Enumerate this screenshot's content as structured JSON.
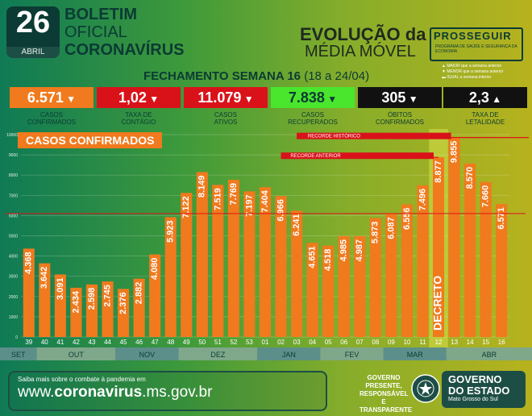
{
  "header": {
    "day": "26",
    "month": "ABRIL",
    "title_line1": "BOLETIM",
    "title_line2": "OFICIAL",
    "title_line3": "CORONAVÍRUS",
    "evo_line1": "EVOLUÇÃO da",
    "evo_line2": "MÉDIA MÓVEL",
    "prosseguir": "PROSSEGUIR",
    "prosseguir_sub": "PROGRAMA DE SAÚDE E SEGURANÇA DA ECONOMIA",
    "legend": [
      "MAIOR que a semana anterior",
      "MENOR que a semana anterior",
      "IGUAL a semana interior"
    ],
    "week_title": "FECHAMENTO SEMANA 16",
    "week_range": "(18 a 24/04)"
  },
  "indicators": [
    {
      "value": "6.571",
      "arrow": "▼",
      "label1": "CASOS",
      "label2": "CONFIRMADOS",
      "color": "#f07a1d",
      "text": "#ffffff"
    },
    {
      "value": "1,02",
      "arrow": "▼",
      "label1": "TAXA DE",
      "label2": "CONTÁGIO",
      "color": "#d9121a",
      "text": "#ffffff"
    },
    {
      "value": "11.079",
      "arrow": "▼",
      "label1": "CASOS",
      "label2": "ATIVOS",
      "color": "#d9121a",
      "text": "#ffffff"
    },
    {
      "value": "7.838",
      "arrow": "▼",
      "label1": "CASOS",
      "label2": "RECUPERADOS",
      "color": "#49e62d",
      "text": "#0b3b34"
    },
    {
      "value": "305",
      "arrow": "▼",
      "label1": "ÓBITOS",
      "label2": "CONFIRMADOS",
      "color": "#111111",
      "text": "#ffffff"
    },
    {
      "value": "2,3",
      "arrow": "▲",
      "label1": "TAXA DE",
      "label2": "LETALIDADE",
      "color": "#111111",
      "text": "#ffffff"
    }
  ],
  "chart_data": {
    "type": "bar",
    "title": "CASOS CONFIRMADOS",
    "categories": [
      "39",
      "40",
      "41",
      "42",
      "43",
      "44",
      "45",
      "46",
      "47",
      "48",
      "49",
      "50",
      "51",
      "52",
      "53",
      "01",
      "02",
      "03",
      "04",
      "05",
      "06",
      "07",
      "08",
      "09",
      "10",
      "11",
      "12",
      "13",
      "14",
      "15",
      "16"
    ],
    "values": [
      4368,
      3642,
      3091,
      2434,
      2598,
      2745,
      2376,
      2882,
      4080,
      5923,
      7122,
      8149,
      7519,
      7769,
      7197,
      7404,
      6966,
      6241,
      4651,
      4518,
      4985,
      4987,
      5873,
      6087,
      6556,
      7496,
      8877,
      9855,
      8570,
      7660,
      6571
    ],
    "value_labels": [
      "4.368",
      "3.642",
      "3.091",
      "2.434",
      "2.598",
      "2.745",
      "2.376",
      "2.882",
      "4.080",
      "5.923",
      "7.122",
      "8.149",
      "7.519",
      "7.769",
      "7.197",
      "7.404",
      "6.966",
      "6.241",
      "4.651",
      "4.518",
      "4.985",
      "4.987",
      "5.873",
      "6.087",
      "6.556",
      "7.496",
      "8.877",
      "9.855",
      "8.570",
      "7.660",
      "6.571"
    ],
    "ylim": [
      0,
      10000
    ],
    "yticks": [
      0,
      1000,
      2000,
      3000,
      4000,
      5000,
      6000,
      7000,
      8000,
      9000,
      10000
    ],
    "months": [
      {
        "label": "SET",
        "from": 0,
        "to": 0,
        "color": "#5c8f8a"
      },
      {
        "label": "OUT",
        "from": 1,
        "to": 5,
        "color": "#7fa78a"
      },
      {
        "label": "NOV",
        "from": 6,
        "to": 9,
        "color": "#5c8f8a"
      },
      {
        "label": "DEZ",
        "from": 10,
        "to": 14,
        "color": "#7fa78a"
      },
      {
        "label": "JAN",
        "from": 15,
        "to": 18,
        "color": "#5c8f8a"
      },
      {
        "label": "FEV",
        "from": 19,
        "to": 22,
        "color": "#7fa78a"
      },
      {
        "label": "MAR",
        "from": 23,
        "to": 26,
        "color": "#5c8f8a"
      },
      {
        "label": "ABR",
        "from": 27,
        "to": 30,
        "color": "#7fa78a"
      }
    ],
    "decree_label": "DECRETO",
    "decree_index": 26,
    "record_historic": {
      "label": "RECORDE HISTÓRICO",
      "value": 9855
    },
    "record_previous": {
      "label": "RECORDE ANTERIOR",
      "value": 8877
    },
    "reference_line": 6100,
    "bar_color": "#f07a1d"
  },
  "footer": {
    "small": "Saiba mais sobre o combate à pandemia em",
    "url_prefix": "www.",
    "url_bold": "coronavirus",
    "url_suffix": ".ms.gov.br",
    "gov_slogan": "GOVERNO PRESENTE, RESPONSÁVEL E TRANSPARENTE",
    "gov_line1": "GOVERNO",
    "gov_line2": "DO ESTADO",
    "gov_line3": "Mato Grosso do Sul"
  }
}
